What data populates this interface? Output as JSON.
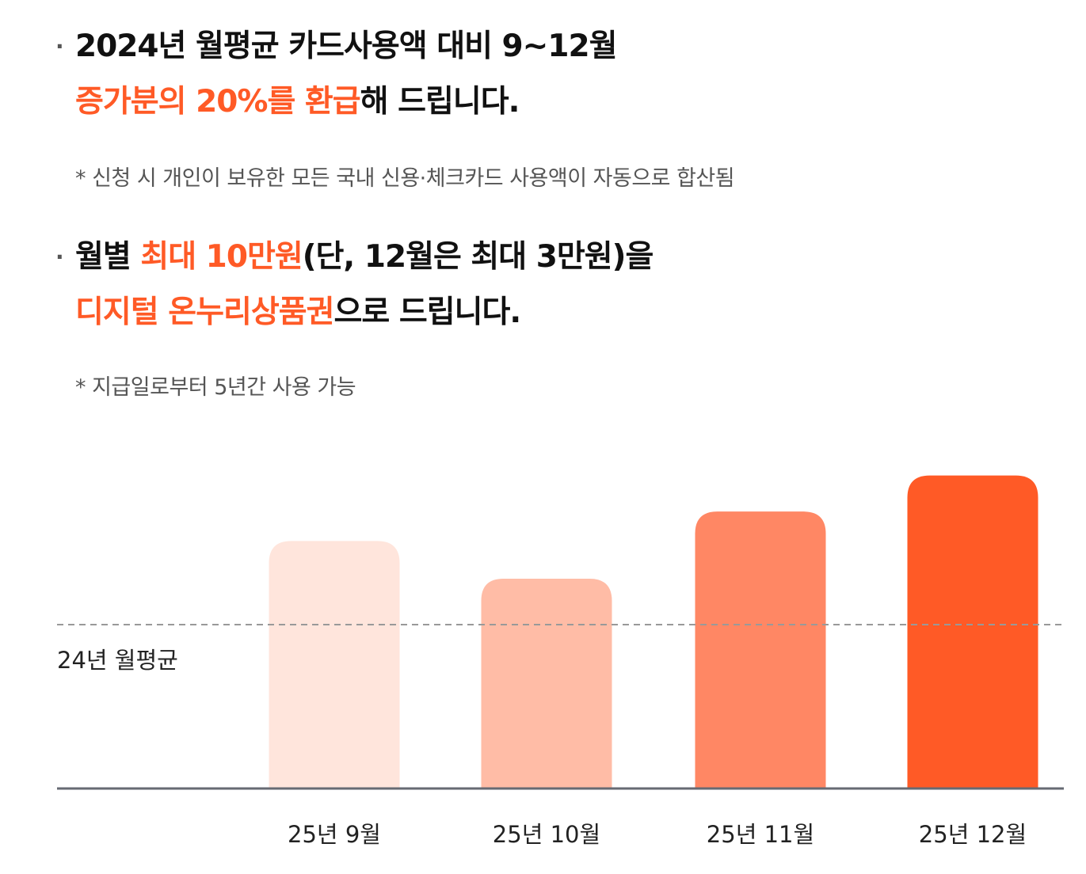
{
  "section1": {
    "bullet": "·",
    "line1": "2024년 월평균 카드사용액 대비 9~12월",
    "line2_accent": "증가분의 20%를 환급",
    "line2_rest": "해 드립니다.",
    "note": "* 신청 시 개인이 보유한 모든 국내 신용·체크카드 사용액이 자동으로 합산됨"
  },
  "section2": {
    "bullet": "·",
    "line1_pre": "월별 ",
    "line1_accent": "최대 10만원",
    "line1_rest": "(단, 12월은 최대 3만원)을",
    "line2_accent": "디지털 온누리상품권",
    "line2_rest": "으로 드립니다.",
    "note": "* 지급일로부터 5년간 사용 가능"
  },
  "colors": {
    "accent": "#ff5a26",
    "bars": [
      "#ffe5dc",
      "#ffbca6",
      "#ff8764",
      "#ff5a26"
    ],
    "baseline": "#666a73",
    "reference": "#999999"
  },
  "chart_data": {
    "type": "bar",
    "categories": [
      "25년 9월",
      "25년 10월",
      "25년 11월",
      "25년 12월"
    ],
    "values": [
      151,
      128,
      169,
      191
    ],
    "reference_line": {
      "label": "24년 월평균",
      "value": 100
    },
    "ylim": [
      0,
      200
    ],
    "grid": false,
    "legend": "none"
  }
}
